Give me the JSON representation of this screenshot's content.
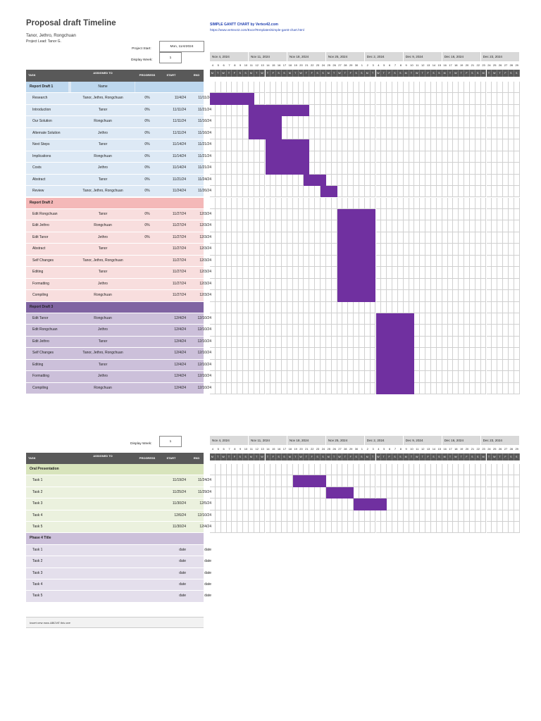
{
  "header": {
    "title": "Proposal draft Timeline",
    "team": "Tanor, Jethro, Rongchuan",
    "lead": "Project Lead: Tanor G.",
    "link_title": "SIMPLE GANTT CHART by Vertex42.com",
    "link_url": "https://www.vertex42.com/ExcelTemplates/simple-gantt-chart.html",
    "project_start_label": "Project Start:",
    "project_start_value": "Mon, 11/4/2024",
    "display_week_label": "Display Week:",
    "display_week_value": "1"
  },
  "columns": {
    "task": "TASK",
    "assigned": "ASSIGNED TO",
    "progress": "PROGRESS",
    "start": "START",
    "end": "END"
  },
  "weeks": [
    "Nov 4, 2024",
    "Nov 11, 2024",
    "Nov 18, 2024",
    "Nov 25, 2024",
    "Dec 2, 2024",
    "Dec 9, 2024",
    "Dec 16, 2024",
    "Dec 23, 2024"
  ],
  "day_numbers": [
    "4",
    "5",
    "6",
    "7",
    "8",
    "9",
    "10",
    "11",
    "12",
    "13",
    "14",
    "15",
    "16",
    "17",
    "18",
    "19",
    "20",
    "21",
    "22",
    "23",
    "24",
    "25",
    "26",
    "27",
    "28",
    "29",
    "30",
    "1",
    "2",
    "3",
    "4",
    "5",
    "6",
    "7",
    "8",
    "9",
    "10",
    "11",
    "12",
    "13",
    "14",
    "15",
    "16",
    "17",
    "18",
    "19",
    "20",
    "21",
    "22",
    "23",
    "24",
    "25",
    "26",
    "27",
    "28",
    "29"
  ],
  "day_letters": [
    "M",
    "T",
    "W",
    "T",
    "F",
    "S",
    "S"
  ],
  "colors": {
    "phase1_bg": "#bdd7ee",
    "phase1_row": "#dde9f5",
    "phase2_bg": "#f4b8b8",
    "phase2_row": "#f8dede",
    "phase3_bg": "#8064a2",
    "phase3_row": "#ccc0da",
    "phase4_bg": "#d8e4bc",
    "phase4_row": "#ebf1de",
    "phase5_bg": "#ccc0da",
    "phase5_row": "#e4dfec",
    "bar": "#7030a0"
  },
  "sections": [
    {
      "name": "Report Draft 1",
      "assigned": "Name",
      "bg_key": "phase1_bg",
      "row_key": "phase1_row",
      "tasks": [
        {
          "task": "Research",
          "assigned": "Tanor, Jethro, Rongchuan",
          "progress": "0%",
          "start": "11/4/24",
          "end": "11/11/24",
          "d0": 0,
          "d1": 8
        },
        {
          "task": "Introduction",
          "assigned": "Tanor",
          "progress": "0%",
          "start": "11/11/24",
          "end": "11/21/24",
          "d0": 7,
          "d1": 18
        },
        {
          "task": "Our Solution",
          "assigned": "Rongchuan",
          "progress": "0%",
          "start": "11/11/24",
          "end": "11/16/24",
          "d0": 7,
          "d1": 13
        },
        {
          "task": "Alternate Solution",
          "assigned": "Jethro",
          "progress": "0%",
          "start": "11/11/24",
          "end": "11/16/24",
          "d0": 7,
          "d1": 13
        },
        {
          "task": "Next Steps",
          "assigned": "Tanor",
          "progress": "0%",
          "start": "11/14/24",
          "end": "11/21/24",
          "d0": 10,
          "d1": 18
        },
        {
          "task": "Implications",
          "assigned": "Rongchuan",
          "progress": "0%",
          "start": "11/14/24",
          "end": "11/21/24",
          "d0": 10,
          "d1": 18
        },
        {
          "task": "Costs",
          "assigned": "Jethro",
          "progress": "0%",
          "start": "11/14/24",
          "end": "11/21/24",
          "d0": 10,
          "d1": 18
        },
        {
          "task": "Abstract",
          "assigned": "Tanor",
          "progress": "0%",
          "start": "11/21/24",
          "end": "11/24/24",
          "d0": 17,
          "d1": 21
        },
        {
          "task": "Review",
          "assigned": "Tanor, Jethro, Rongchuan",
          "progress": "0%",
          "start": "11/24/24",
          "end": "11/26/24",
          "d0": 20,
          "d1": 23
        }
      ]
    },
    {
      "name": "Report Draft 2",
      "assigned": "",
      "bg_key": "phase2_bg",
      "row_key": "phase2_row",
      "tasks": [
        {
          "task": "Edit Rongchuan",
          "assigned": "Tanor",
          "progress": "0%",
          "start": "11/27/24",
          "end": "12/3/24",
          "d0": 23,
          "d1": 30
        },
        {
          "task": "Edit Jethro",
          "assigned": "Rongchuan",
          "progress": "0%",
          "start": "11/27/24",
          "end": "12/3/24",
          "d0": 23,
          "d1": 30
        },
        {
          "task": "Edit Tanor",
          "assigned": "Jethro",
          "progress": "0%",
          "start": "11/27/24",
          "end": "12/3/24",
          "d0": 23,
          "d1": 30
        },
        {
          "task": "Abstract",
          "assigned": "Tanor",
          "progress": "",
          "start": "11/27/24",
          "end": "12/3/24",
          "d0": 23,
          "d1": 30
        },
        {
          "task": "Self Changes",
          "assigned": "Tanor, Jethro, Rongchuan",
          "progress": "",
          "start": "11/27/24",
          "end": "12/3/24",
          "d0": 23,
          "d1": 30
        },
        {
          "task": "Editing",
          "assigned": "Tanor",
          "progress": "",
          "start": "11/27/24",
          "end": "12/3/24",
          "d0": 23,
          "d1": 30
        },
        {
          "task": "Formatting",
          "assigned": "Jethro",
          "progress": "",
          "start": "11/27/24",
          "end": "12/3/24",
          "d0": 23,
          "d1": 30
        },
        {
          "task": "Compiling",
          "assigned": "Rongchuan",
          "progress": "",
          "start": "11/27/24",
          "end": "12/3/24",
          "d0": 23,
          "d1": 30
        }
      ]
    },
    {
      "name": "Report Draft 3",
      "assigned": "",
      "bg_key": "phase3_bg",
      "row_key": "phase3_row",
      "tasks": [
        {
          "task": "Edit Tanor",
          "assigned": "Rongchuan",
          "progress": "",
          "start": "12/4/24",
          "end": "12/10/24",
          "d0": 30,
          "d1": 37
        },
        {
          "task": "Edit Rongchuan",
          "assigned": "Jethro",
          "progress": "",
          "start": "12/4/24",
          "end": "12/10/24",
          "d0": 30,
          "d1": 37
        },
        {
          "task": "Edit Jethro",
          "assigned": "Tanor",
          "progress": "",
          "start": "12/4/24",
          "end": "12/10/24",
          "d0": 30,
          "d1": 37
        },
        {
          "task": "Self Changes",
          "assigned": "Tanor, Jethro, Rongchuan",
          "progress": "",
          "start": "12/4/24",
          "end": "12/10/24",
          "d0": 30,
          "d1": 37
        },
        {
          "task": "Editing",
          "assigned": "Tanor",
          "progress": "",
          "start": "12/4/24",
          "end": "12/10/24",
          "d0": 30,
          "d1": 37
        },
        {
          "task": "Formatting",
          "assigned": "Jethro",
          "progress": "",
          "start": "12/4/24",
          "end": "12/10/24",
          "d0": 30,
          "d1": 37
        },
        {
          "task": "Compiling",
          "assigned": "Rongchuan",
          "progress": "",
          "start": "12/4/24",
          "end": "12/10/24",
          "d0": 30,
          "d1": 37
        }
      ]
    }
  ],
  "sections2": [
    {
      "name": "Oral Presentation",
      "assigned": "",
      "bg_key": "phase4_bg",
      "row_key": "phase4_row",
      "tasks": [
        {
          "task": "Task 1",
          "assigned": "",
          "progress": "",
          "start": "11/19/24",
          "end": "11/24/24",
          "d0": 15,
          "d1": 21
        },
        {
          "task": "Task 2",
          "assigned": "",
          "progress": "",
          "start": "11/25/24",
          "end": "11/29/24",
          "d0": 21,
          "d1": 26
        },
        {
          "task": "Task 3",
          "assigned": "",
          "progress": "",
          "start": "11/30/24",
          "end": "12/5/24",
          "d0": 26,
          "d1": 32
        },
        {
          "task": "Task 4",
          "assigned": "",
          "progress": "",
          "start": "12/6/24",
          "end": "12/10/24"
        },
        {
          "task": "Task 5",
          "assigned": "",
          "progress": "",
          "start": "11/30/24",
          "end": "12/4/24"
        }
      ]
    },
    {
      "name": "Phase 4 Title",
      "assigned": "",
      "bg_key": "phase5_bg",
      "row_key": "phase5_row",
      "tasks": [
        {
          "task": "Task 1",
          "assigned": "",
          "progress": "",
          "start": "date",
          "end": "date"
        },
        {
          "task": "Task 2",
          "assigned": "",
          "progress": "",
          "start": "date",
          "end": "date"
        },
        {
          "task": "Task 3",
          "assigned": "",
          "progress": "",
          "start": "date",
          "end": "date"
        },
        {
          "task": "Task 4",
          "assigned": "",
          "progress": "",
          "start": "date",
          "end": "date"
        },
        {
          "task": "Task 5",
          "assigned": "",
          "progress": "",
          "start": "date",
          "end": "date"
        }
      ]
    }
  ],
  "insert_note": "Insert new rows ABOVE this one",
  "display_week_2": "1"
}
